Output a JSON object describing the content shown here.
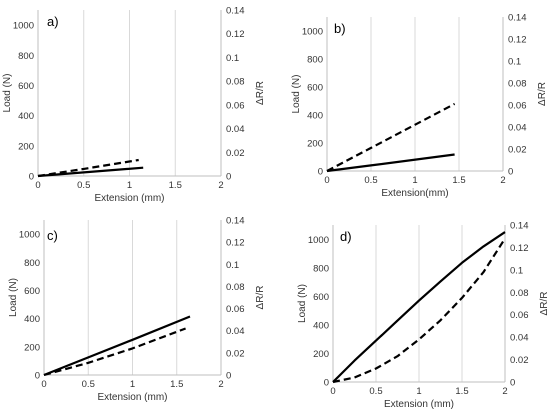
{
  "colors": {
    "line": "#000000",
    "grid": "#d9d9d9",
    "axis": "#bfbfbf",
    "text": "#333333"
  },
  "chart_data": [
    {
      "type": "line",
      "panel_label": "a)",
      "xlabel": "Extension (mm)",
      "ylabel": "Load (N)",
      "y2label": "ΔR/R",
      "xlim": [
        0,
        2
      ],
      "ylim": [
        0,
        1100
      ],
      "y2lim": [
        0,
        0.14
      ],
      "x_ticks": [
        "0",
        "0.5",
        "1",
        "1.5",
        "2"
      ],
      "y_ticks": [
        "0",
        "200",
        "400",
        "600",
        "800",
        "1000"
      ],
      "y2_ticks": [
        "0",
        "0.02",
        "0.04",
        "0.06",
        "0.08",
        "0.1",
        "0.12",
        "0.14"
      ],
      "grid": "vertical",
      "series": [
        {
          "style": "solid",
          "axis": "left",
          "x": [
            0,
            0.5,
            1.15
          ],
          "y": [
            0,
            24,
            55
          ]
        },
        {
          "style": "dashed",
          "axis": "right",
          "x": [
            0,
            0.5,
            1.1
          ],
          "y": [
            0,
            0.006,
            0.0135
          ]
        }
      ]
    },
    {
      "type": "line",
      "panel_label": "b)",
      "xlabel": "Extension(mm)",
      "ylabel": "Load (N)",
      "y2label": "ΔR/R",
      "xlim": [
        0,
        2
      ],
      "ylim": [
        0,
        1100
      ],
      "y2lim": [
        0,
        0.14
      ],
      "x_ticks": [
        "0",
        "0.5",
        "1",
        "1.5",
        "2"
      ],
      "y_ticks": [
        "0",
        "200",
        "400",
        "600",
        "800",
        "1000"
      ],
      "y2_ticks": [
        "0",
        "0.02",
        "0.04",
        "0.06",
        "0.08",
        "0.1",
        "0.12",
        "0.14"
      ],
      "grid": "vertical",
      "series": [
        {
          "style": "solid",
          "axis": "left",
          "x": [
            0,
            0.5,
            1.45
          ],
          "y": [
            0,
            40,
            118
          ]
        },
        {
          "style": "dashed",
          "axis": "right",
          "x": [
            0,
            0.5,
            1.45
          ],
          "y": [
            0,
            0.021,
            0.061
          ]
        }
      ]
    },
    {
      "type": "line",
      "panel_label": "c)",
      "xlabel": "Extension (mm)",
      "ylabel": "Load (N)",
      "y2label": "ΔR/R",
      "xlim": [
        0,
        2
      ],
      "ylim": [
        0,
        1100
      ],
      "y2lim": [
        0,
        0.14
      ],
      "x_ticks": [
        "0",
        "0.5",
        "1",
        "1.5",
        "2"
      ],
      "y_ticks": [
        "0",
        "200",
        "400",
        "600",
        "800",
        "1000"
      ],
      "y2_ticks": [
        "0",
        "0.02",
        "0.04",
        "0.06",
        "0.08",
        "0.1",
        "0.12",
        "0.14"
      ],
      "grid": "vertical",
      "series": [
        {
          "style": "solid",
          "axis": "left",
          "x": [
            0,
            0.5,
            1,
            1.65
          ],
          "y": [
            0,
            125,
            250,
            415
          ]
        },
        {
          "style": "dashed",
          "axis": "right",
          "x": [
            0,
            0.5,
            1,
            1.6
          ],
          "y": [
            0,
            0.011,
            0.024,
            0.042
          ]
        }
      ]
    },
    {
      "type": "line",
      "panel_label": "d)",
      "xlabel": "Extension (mm)",
      "ylabel": "Load (N)",
      "y2label": "ΔR/R",
      "xlim": [
        0,
        2
      ],
      "ylim": [
        0,
        1100
      ],
      "y2lim": [
        0,
        0.14
      ],
      "x_ticks": [
        "0",
        "0.5",
        "1",
        "1.5",
        "2"
      ],
      "y_ticks": [
        "0",
        "200",
        "400",
        "600",
        "800",
        "1000"
      ],
      "y2_ticks": [
        "0",
        "0.02",
        "0.04",
        "0.06",
        "0.08",
        "0.1",
        "0.12",
        "0.14"
      ],
      "grid": "vertical",
      "series": [
        {
          "style": "solid",
          "axis": "left",
          "x": [
            0,
            0.25,
            0.5,
            0.75,
            1,
            1.25,
            1.5,
            1.75,
            2
          ],
          "y": [
            0,
            150,
            290,
            430,
            570,
            705,
            835,
            950,
            1050
          ]
        },
        {
          "style": "dashed",
          "axis": "right",
          "x": [
            0,
            0.25,
            0.5,
            0.75,
            1,
            1.25,
            1.5,
            1.75,
            2
          ],
          "y": [
            0,
            0.004,
            0.012,
            0.023,
            0.038,
            0.055,
            0.075,
            0.098,
            0.128
          ]
        }
      ]
    }
  ]
}
